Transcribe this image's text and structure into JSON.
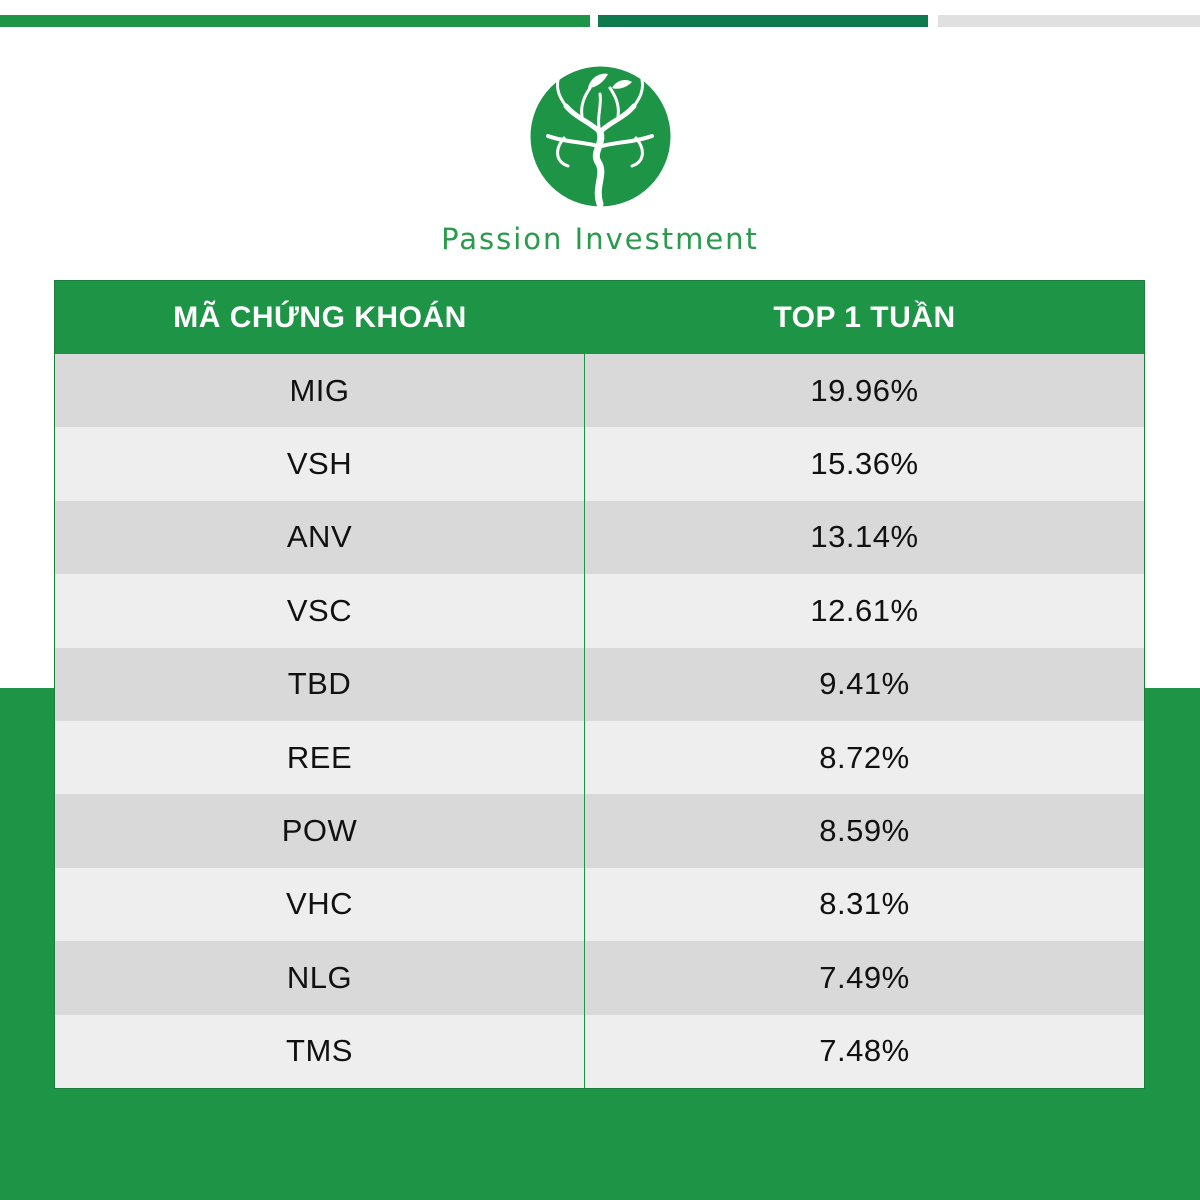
{
  "brand": {
    "name": "Passion Investment",
    "colors": {
      "primary_green": "#1e9446",
      "dark_green": "#0f7a4f",
      "light_gray": "#e0e0e0"
    },
    "logo_icon": "tree-in-circle-icon"
  },
  "table": {
    "headers": [
      "MÃ CHỨNG KHOÁN",
      "TOP 1 TUẦN"
    ],
    "rows": [
      {
        "code": "MIG",
        "value": "19.96%"
      },
      {
        "code": "VSH",
        "value": "15.36%"
      },
      {
        "code": "ANV",
        "value": "13.14%"
      },
      {
        "code": "VSC",
        "value": "12.61%"
      },
      {
        "code": "TBD",
        "value": "9.41%"
      },
      {
        "code": "REE",
        "value": "8.72%"
      },
      {
        "code": "POW",
        "value": "8.59%"
      },
      {
        "code": "VHC",
        "value": "8.31%"
      },
      {
        "code": "NLG",
        "value": "7.49%"
      },
      {
        "code": "TMS",
        "value": "7.48%"
      }
    ]
  }
}
